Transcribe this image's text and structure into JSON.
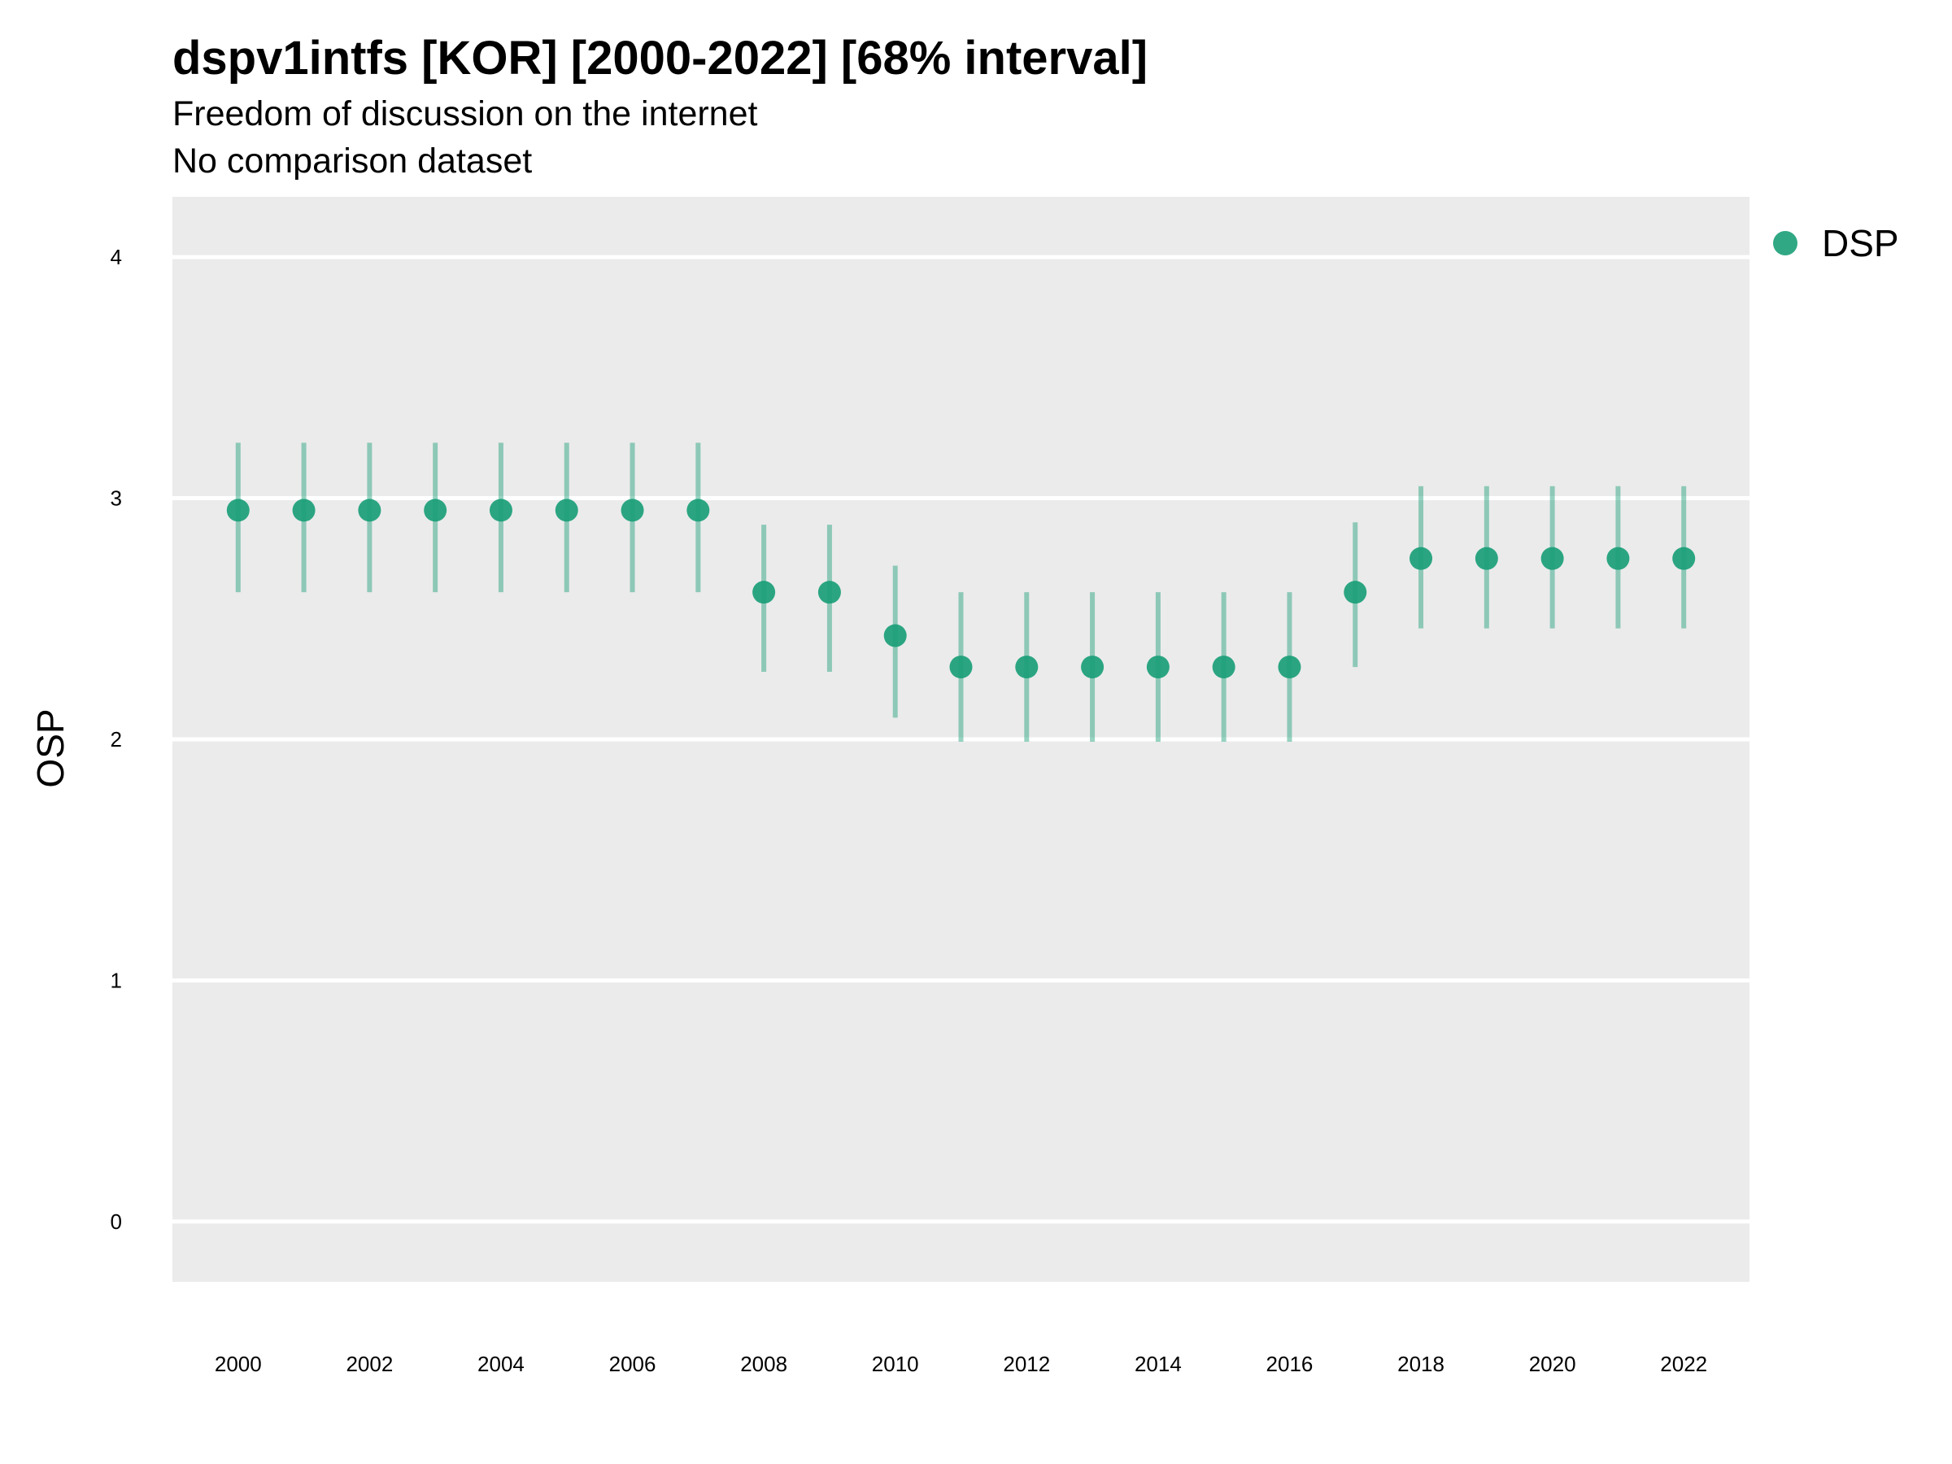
{
  "chart_data": {
    "type": "scatter",
    "title": "dspv1intfs [KOR] [2000-2022] [68% interval]",
    "subtitle_lines": [
      "Freedom of discussion on the internet",
      "No comparison dataset"
    ],
    "ylabel": "OSP",
    "xlabel": "",
    "ylim": [
      -0.25,
      4.25
    ],
    "yticks": [
      0,
      1,
      2,
      3,
      4
    ],
    "xlim": [
      1999,
      2023
    ],
    "xticks": [
      2000,
      2002,
      2004,
      2006,
      2008,
      2010,
      2012,
      2014,
      2016,
      2018,
      2020,
      2022
    ],
    "grid": true,
    "legend_position": "top-right",
    "color": "#1a9e77",
    "series": [
      {
        "name": "DSP",
        "x": [
          2000,
          2001,
          2002,
          2003,
          2004,
          2005,
          2006,
          2007,
          2008,
          2009,
          2010,
          2011,
          2012,
          2013,
          2014,
          2015,
          2016,
          2017,
          2018,
          2019,
          2020,
          2021,
          2022
        ],
        "y": [
          2.95,
          2.95,
          2.95,
          2.95,
          2.95,
          2.95,
          2.95,
          2.95,
          2.61,
          2.61,
          2.43,
          2.3,
          2.3,
          2.3,
          2.3,
          2.3,
          2.3,
          2.61,
          2.75,
          2.75,
          2.75,
          2.75,
          2.75
        ],
        "lower": [
          2.61,
          2.61,
          2.61,
          2.61,
          2.61,
          2.61,
          2.61,
          2.61,
          2.28,
          2.28,
          2.09,
          1.99,
          1.99,
          1.99,
          1.99,
          1.99,
          1.99,
          2.3,
          2.46,
          2.46,
          2.46,
          2.46,
          2.46
        ],
        "upper": [
          3.23,
          3.23,
          3.23,
          3.23,
          3.23,
          3.23,
          3.23,
          3.23,
          2.89,
          2.89,
          2.72,
          2.61,
          2.61,
          2.61,
          2.61,
          2.61,
          2.61,
          2.9,
          3.05,
          3.05,
          3.05,
          3.05,
          3.05
        ]
      }
    ]
  }
}
